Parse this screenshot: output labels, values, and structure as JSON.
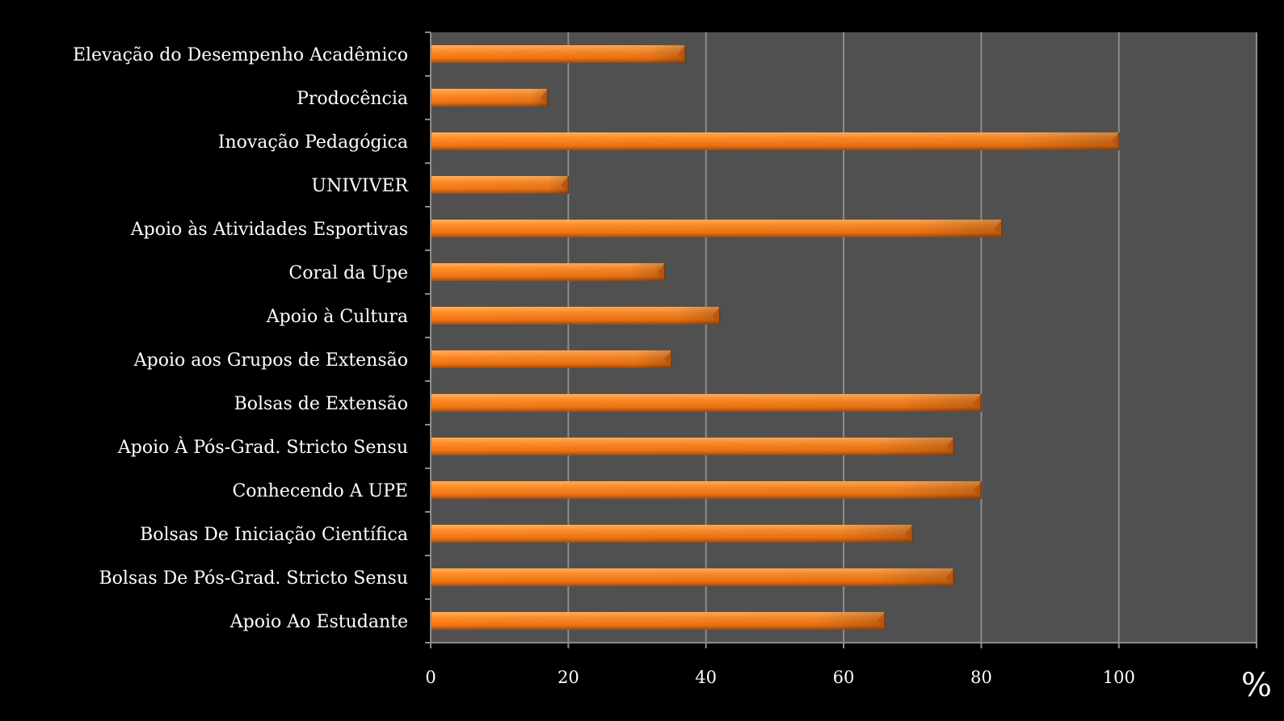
{
  "colors": {
    "background": "#000000",
    "plot_area": "#505050",
    "gridline": "#8c8c8c",
    "axis": "#8c8c8c",
    "bar_light": "#ff9a3c",
    "bar_mid": "#f47b16",
    "bar_dark": "#b9520a",
    "text": "#ffffff"
  },
  "chart_data": {
    "type": "bar",
    "orientation": "horizontal",
    "title": "",
    "xlabel": "",
    "ylabel": "",
    "unit_label": "%",
    "categories": [
      "Elevação do Desempenho Acadêmico",
      "Prodocência",
      "Inovação Pedagógica",
      "UNIVIVER",
      "Apoio às Atividades Esportivas",
      "Coral da Upe",
      "Apoio à Cultura",
      "Apoio aos Grupos de Extensão",
      "Bolsas de Extensão",
      "Apoio À Pós-Grad. Stricto Sensu",
      "Conhecendo A UPE",
      "Bolsas De Iniciação Científica",
      "Bolsas De Pós-Grad. Stricto Sensu",
      "Apoio Ao Estudante"
    ],
    "values": [
      37,
      17,
      100,
      20,
      83,
      34,
      42,
      35,
      80,
      76,
      80,
      70,
      76,
      66
    ],
    "xlim": [
      0,
      120
    ],
    "xticks": [
      "0",
      "20",
      "40",
      "60",
      "80",
      "100"
    ],
    "grid": true,
    "legend": "none"
  }
}
